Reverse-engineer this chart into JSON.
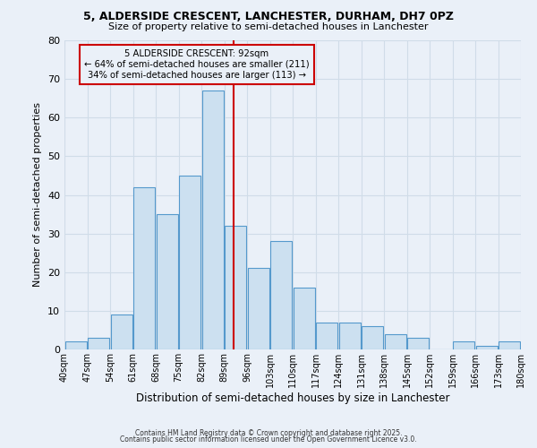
{
  "title1": "5, ALDERSIDE CRESCENT, LANCHESTER, DURHAM, DH7 0PZ",
  "title2": "Size of property relative to semi-detached houses in Lanchester",
  "xlabel": "Distribution of semi-detached houses by size in Lanchester",
  "ylabel": "Number of semi-detached properties",
  "bin_labels": [
    "40sqm",
    "47sqm",
    "54sqm",
    "61sqm",
    "68sqm",
    "75sqm",
    "82sqm",
    "89sqm",
    "96sqm",
    "103sqm",
    "110sqm",
    "117sqm",
    "124sqm",
    "131sqm",
    "138sqm",
    "145sqm",
    "152sqm",
    "159sqm",
    "166sqm",
    "173sqm",
    "180sqm"
  ],
  "bin_edges": [
    40,
    47,
    54,
    61,
    68,
    75,
    82,
    89,
    96,
    103,
    110,
    117,
    124,
    131,
    138,
    145,
    152,
    159,
    166,
    173,
    180
  ],
  "bar_heights": [
    2,
    3,
    9,
    42,
    35,
    45,
    67,
    32,
    21,
    28,
    16,
    7,
    7,
    6,
    4,
    3,
    0,
    2,
    1,
    2,
    0
  ],
  "bar_facecolor": "#cce0f0",
  "bar_edgecolor": "#5599cc",
  "vline_x": 92,
  "vline_color": "#cc0000",
  "annotation_title": "5 ALDERSIDE CRESCENT: 92sqm",
  "annotation_line1": "← 64% of semi-detached houses are smaller (211)",
  "annotation_line2": "34% of semi-detached houses are larger (113) →",
  "annotation_box_edgecolor": "#cc0000",
  "ylim": [
    0,
    80
  ],
  "yticks": [
    0,
    10,
    20,
    30,
    40,
    50,
    60,
    70,
    80
  ],
  "grid_color": "#d0dce8",
  "bg_color": "#eaf0f8",
  "footer1": "Contains HM Land Registry data © Crown copyright and database right 2025.",
  "footer2": "Contains public sector information licensed under the Open Government Licence v3.0."
}
